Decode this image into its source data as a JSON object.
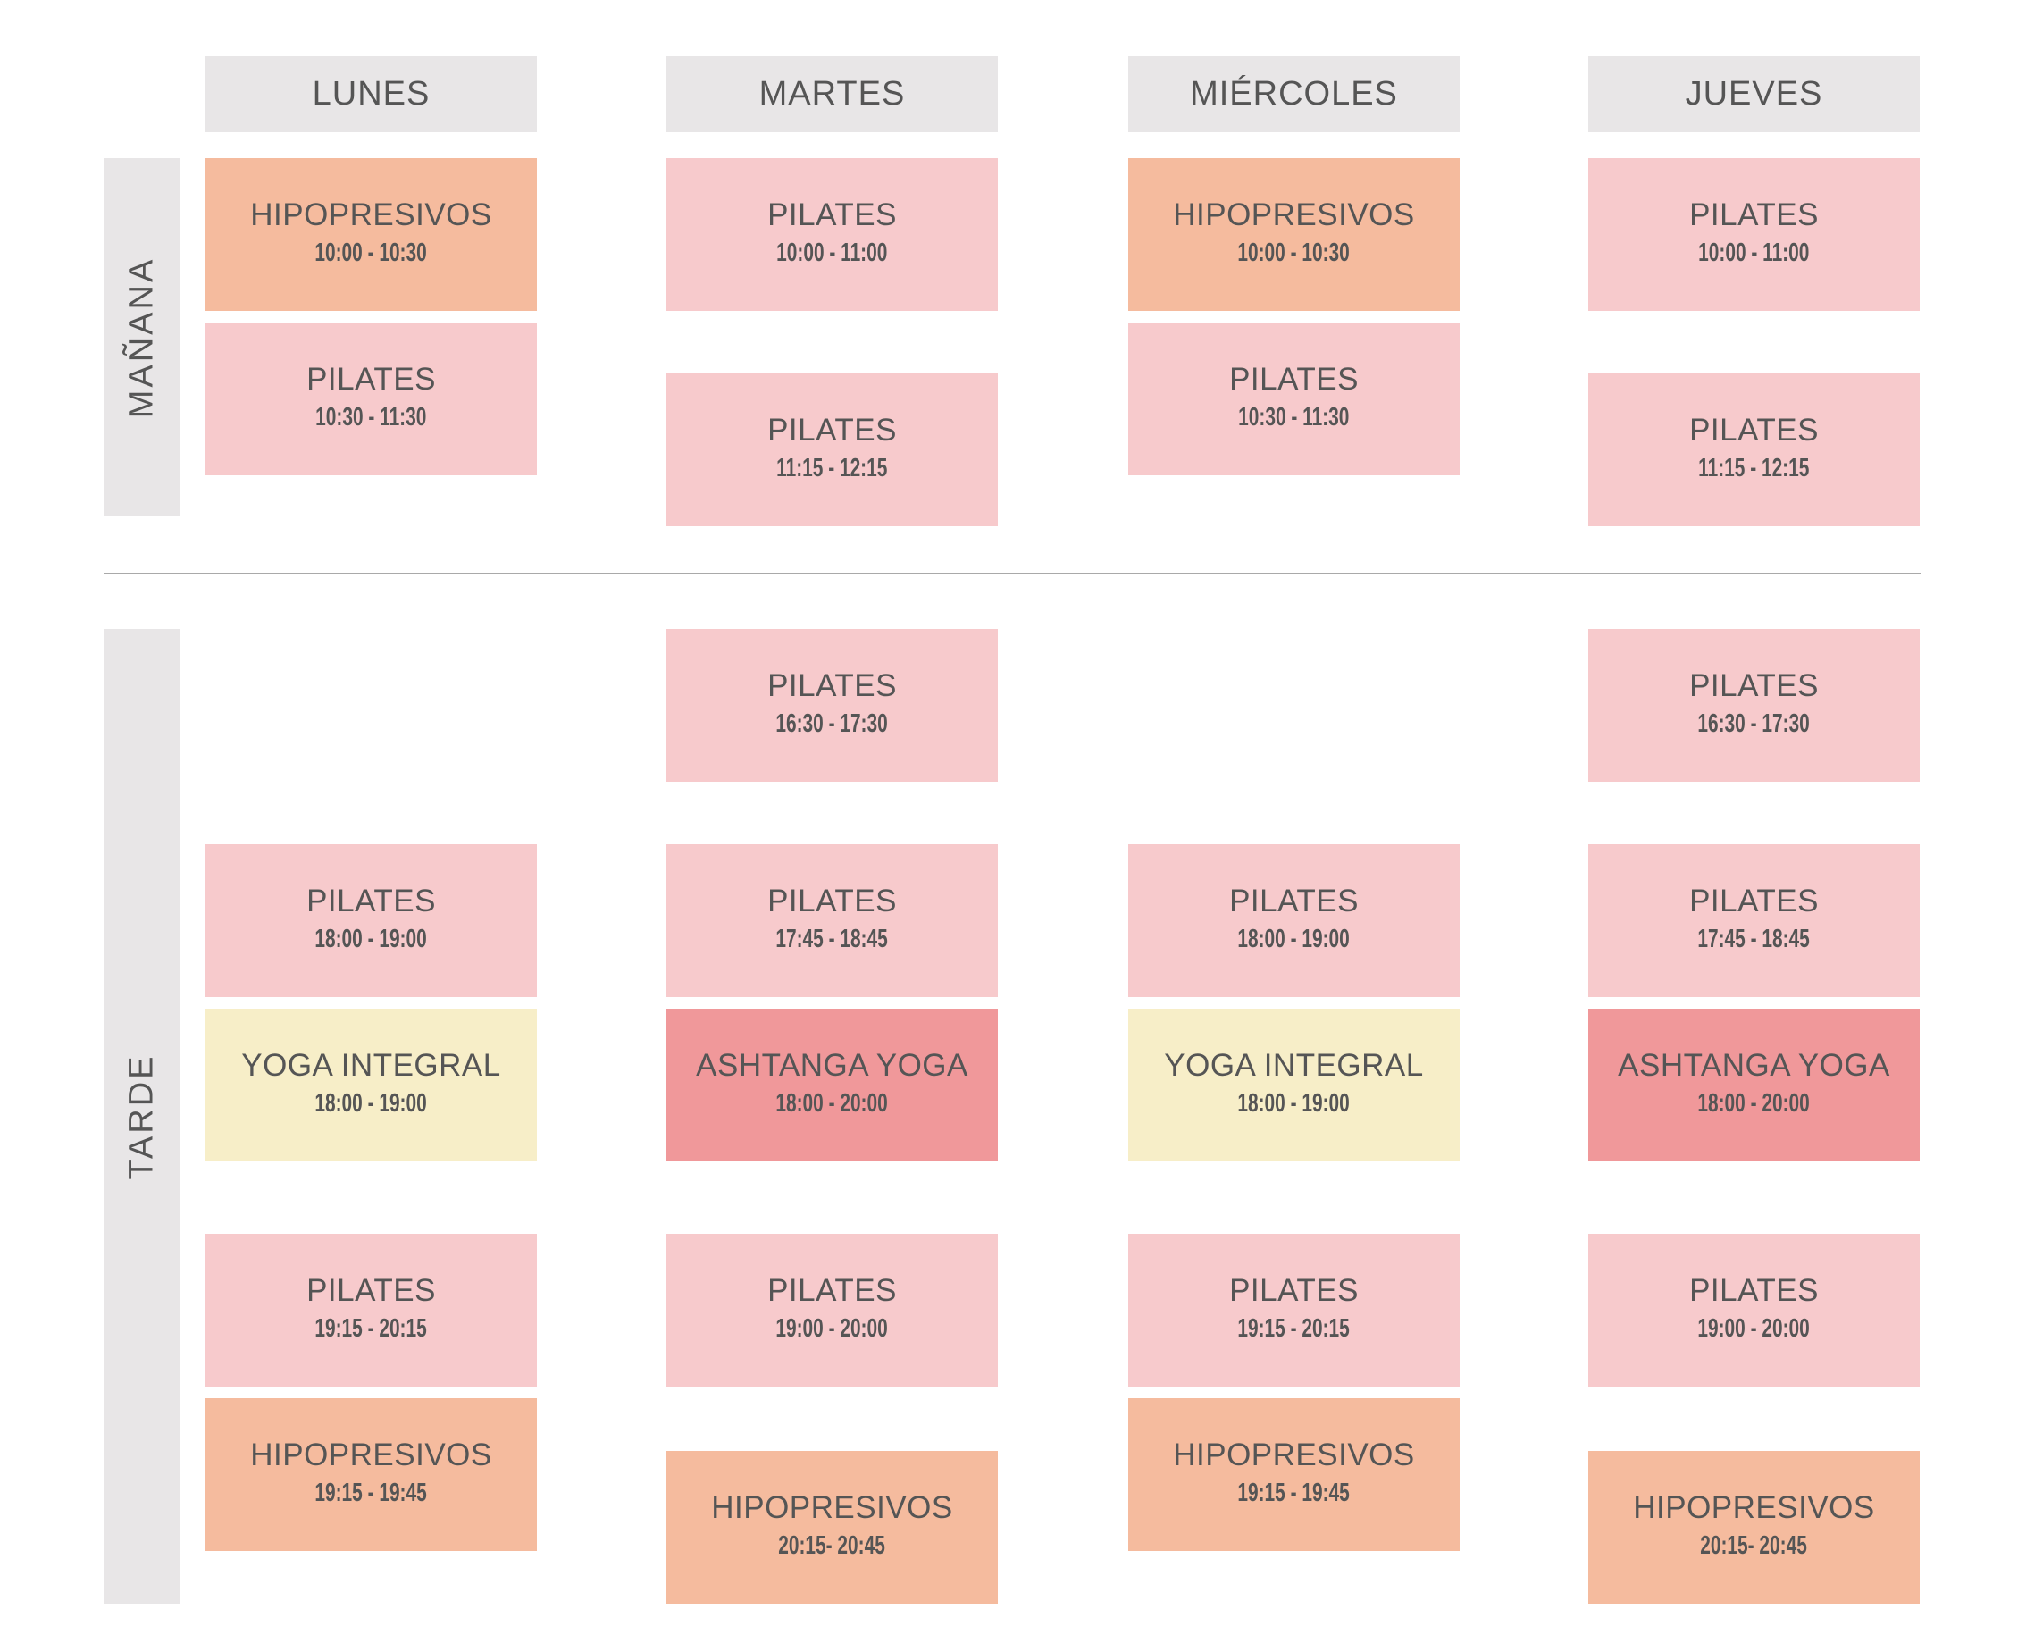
{
  "days": [
    "LUNES",
    "MARTES",
    "MIÉRCOLES",
    "JUEVES"
  ],
  "sections": [
    "MAÑANA",
    "TARDE"
  ],
  "colors": {
    "header": "#e8e6e7",
    "pilates": "#f7cacc",
    "hipopresivos": "#f5bb9e",
    "yoga_integral": "#f7eec8",
    "ashtanga_yoga": "#f0989a",
    "text": "#555555"
  },
  "classes": [
    {
      "day": 0,
      "section": 0,
      "name": "HIPOPRESIVOS",
      "time": "10:00 - 10:30",
      "type": "hipopresivos"
    },
    {
      "day": 0,
      "section": 0,
      "name": "PILATES",
      "time": "10:30 - 11:30",
      "type": "pilates"
    },
    {
      "day": 1,
      "section": 0,
      "name": "PILATES",
      "time": "10:00 - 11:00",
      "type": "pilates"
    },
    {
      "day": 1,
      "section": 0,
      "name": "PILATES",
      "time": "11:15 - 12:15",
      "type": "pilates"
    },
    {
      "day": 2,
      "section": 0,
      "name": "HIPOPRESIVOS",
      "time": "10:00 - 10:30",
      "type": "hipopresivos"
    },
    {
      "day": 2,
      "section": 0,
      "name": "PILATES",
      "time": "10:30 - 11:30",
      "type": "pilates"
    },
    {
      "day": 3,
      "section": 0,
      "name": "PILATES",
      "time": "10:00 - 11:00",
      "type": "pilates"
    },
    {
      "day": 3,
      "section": 0,
      "name": "PILATES",
      "time": "11:15 - 12:15",
      "type": "pilates"
    },
    {
      "day": 1,
      "section": 1,
      "name": "PILATES",
      "time": "16:30 - 17:30",
      "type": "pilates"
    },
    {
      "day": 3,
      "section": 1,
      "name": "PILATES",
      "time": "16:30 - 17:30",
      "type": "pilates"
    },
    {
      "day": 0,
      "section": 1,
      "name": "PILATES",
      "time": "18:00 - 19:00",
      "type": "pilates"
    },
    {
      "day": 1,
      "section": 1,
      "name": "PILATES",
      "time": "17:45 - 18:45",
      "type": "pilates"
    },
    {
      "day": 2,
      "section": 1,
      "name": "PILATES",
      "time": "18:00 - 19:00",
      "type": "pilates"
    },
    {
      "day": 3,
      "section": 1,
      "name": "PILATES",
      "time": "17:45 - 18:45",
      "type": "pilates"
    },
    {
      "day": 0,
      "section": 1,
      "name": "YOGA INTEGRAL",
      "time": "18:00 - 19:00",
      "type": "yoga_integral"
    },
    {
      "day": 1,
      "section": 1,
      "name": "ASHTANGA YOGA",
      "time": "18:00 - 20:00",
      "type": "ashtanga_yoga"
    },
    {
      "day": 2,
      "section": 1,
      "name": "YOGA INTEGRAL",
      "time": "18:00 - 19:00",
      "type": "yoga_integral"
    },
    {
      "day": 3,
      "section": 1,
      "name": "ASHTANGA YOGA",
      "time": "18:00 - 20:00",
      "type": "ashtanga_yoga"
    },
    {
      "day": 0,
      "section": 1,
      "name": "PILATES",
      "time": "19:15 - 20:15",
      "type": "pilates"
    },
    {
      "day": 1,
      "section": 1,
      "name": "PILATES",
      "time": "19:00 - 20:00",
      "type": "pilates"
    },
    {
      "day": 2,
      "section": 1,
      "name": "PILATES",
      "time": "19:15 - 20:15",
      "type": "pilates"
    },
    {
      "day": 3,
      "section": 1,
      "name": "PILATES",
      "time": "19:00 - 20:00",
      "type": "pilates"
    },
    {
      "day": 0,
      "section": 1,
      "name": "HIPOPRESIVOS",
      "time": "19:15 - 19:45",
      "type": "hipopresivos"
    },
    {
      "day": 1,
      "section": 1,
      "name": "HIPOPRESIVOS",
      "time": "20:15- 20:45",
      "type": "hipopresivos"
    },
    {
      "day": 2,
      "section": 1,
      "name": "HIPOPRESIVOS",
      "time": "19:15 - 19:45",
      "type": "hipopresivos"
    },
    {
      "day": 3,
      "section": 1,
      "name": "HIPOPRESIVOS",
      "time": "20:15- 20:45",
      "type": "hipopresivos"
    }
  ]
}
